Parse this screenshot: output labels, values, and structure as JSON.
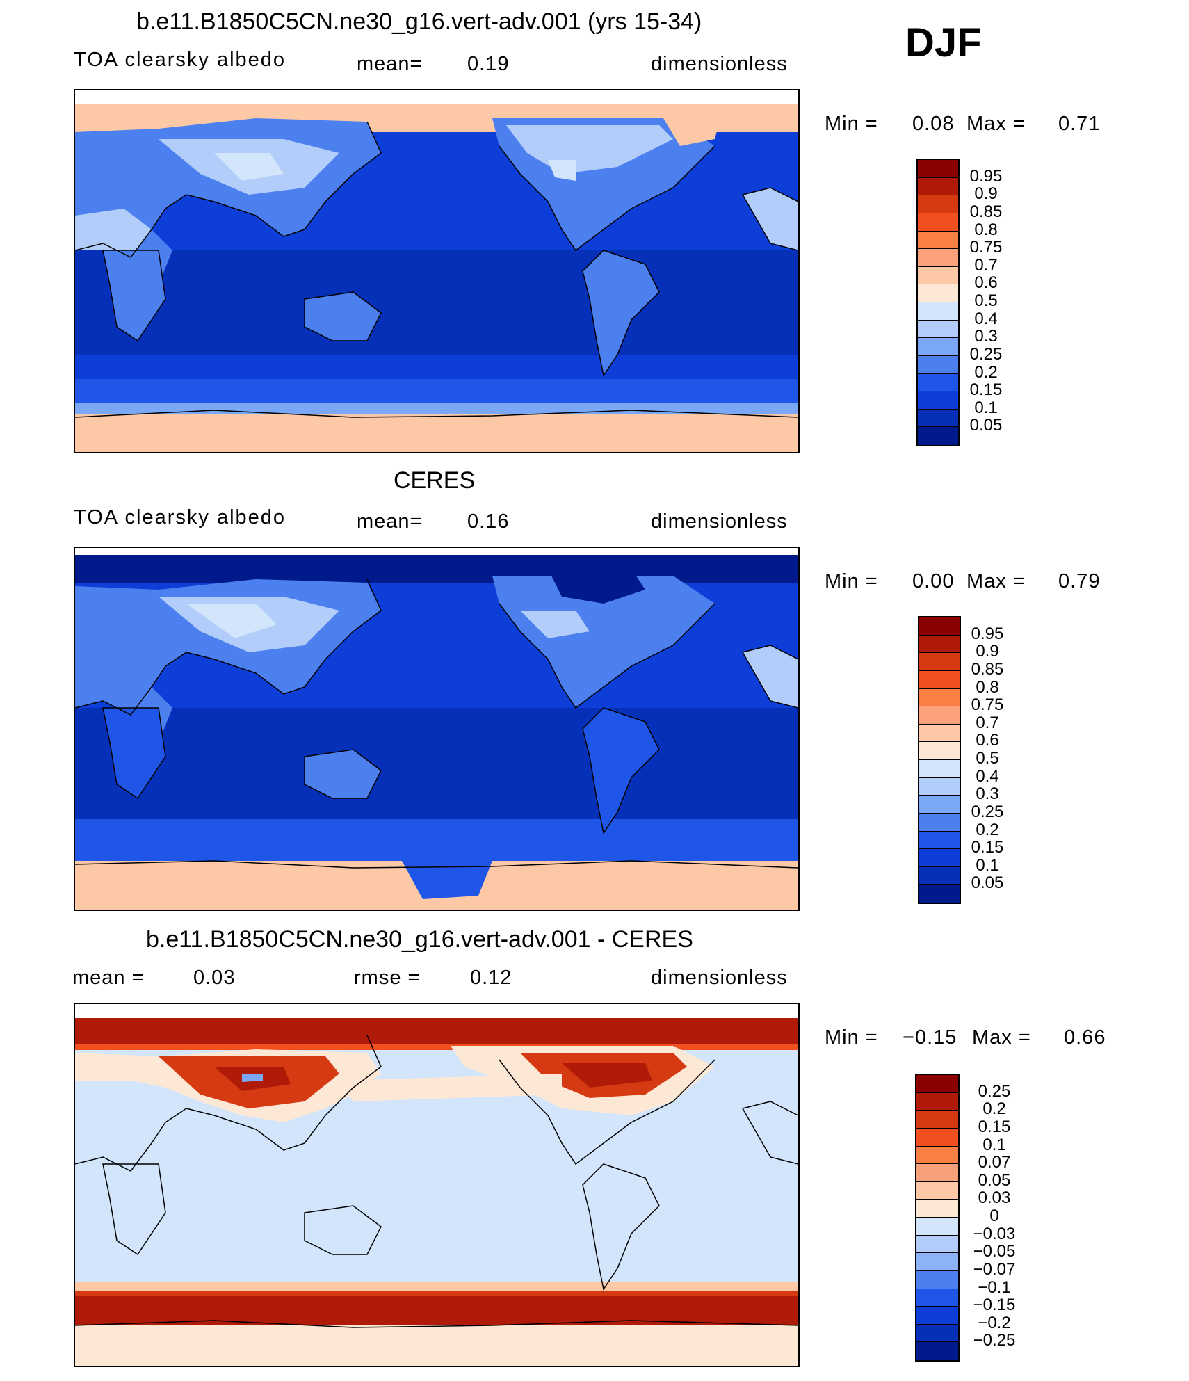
{
  "season": "DJF",
  "panels": [
    {
      "title": "b.e11.B1850C5CN.ne30_g16.vert-adv.001 (yrs 15-34)",
      "left_label": "TOA clearsky albedo",
      "center_label": "mean=",
      "center_value": "0.19",
      "right_label": "dimensionless",
      "min_label": "Min =",
      "min_value": "0.08",
      "max_label": "Max =",
      "max_value": "0.71",
      "colorbar": {
        "levels": [
          "0.95",
          "0.9",
          "0.85",
          "0.8",
          "0.75",
          "0.7",
          "0.6",
          "0.5",
          "0.4",
          "0.3",
          "0.25",
          "0.2",
          "0.15",
          "0.1",
          "0.05"
        ],
        "colors": [
          "#8b0000",
          "#b01a08",
          "#d63a12",
          "#f0501e",
          "#fa7f45",
          "#fca27a",
          "#fcc8a6",
          "#fde8d6",
          "#d2e5fb",
          "#b2cdfa",
          "#7aa8f6",
          "#4d80ef",
          "#1f56e8",
          "#0d3ed8",
          "#0730b8",
          "#001a8c"
        ]
      }
    },
    {
      "title": "CERES",
      "left_label": "TOA clearsky albedo",
      "center_label": "mean=",
      "center_value": "0.16",
      "right_label": "dimensionless",
      "min_label": "Min =",
      "min_value": "0.00",
      "max_label": "Max =",
      "max_value": "0.79",
      "colorbar": {
        "levels": [
          "0.95",
          "0.9",
          "0.85",
          "0.8",
          "0.75",
          "0.7",
          "0.6",
          "0.5",
          "0.4",
          "0.3",
          "0.25",
          "0.2",
          "0.15",
          "0.1",
          "0.05"
        ],
        "colors": [
          "#8b0000",
          "#b01a08",
          "#d63a12",
          "#f0501e",
          "#fa7f45",
          "#fca27a",
          "#fcc8a6",
          "#fde8d6",
          "#d2e5fb",
          "#b2cdfa",
          "#7aa8f6",
          "#4d80ef",
          "#1f56e8",
          "#0d3ed8",
          "#0730b8",
          "#001a8c"
        ]
      }
    },
    {
      "title": "b.e11.B1850C5CN.ne30_g16.vert-adv.001 - CERES",
      "left_label": "mean =",
      "left_value": "0.03",
      "center_label": "rmse =",
      "center_value": "0.12",
      "right_label": "dimensionless",
      "min_label": "Min =",
      "min_value": "−0.15",
      "max_label": "Max =",
      "max_value": "0.66",
      "colorbar": {
        "levels": [
          "0.25",
          "0.2",
          "0.15",
          "0.1",
          "0.07",
          "0.05",
          "0.03",
          "0",
          "−0.03",
          "−0.05",
          "−0.07",
          "−0.1",
          "−0.15",
          "−0.2",
          "−0.25"
        ],
        "colors": [
          "#8b0000",
          "#b01a08",
          "#d63a12",
          "#f0501e",
          "#fa7f45",
          "#f7a07c",
          "#fcc8a6",
          "#fde8d6",
          "#d2e5fb",
          "#b2cdfa",
          "#8cb2f8",
          "#4d80ef",
          "#1f56e8",
          "#0d3ed8",
          "#0730b8",
          "#001a8c"
        ]
      }
    }
  ],
  "colors": {
    "ocean_model": "#0d3ed8",
    "ocean_model_tropics": "#0730b8",
    "land_model": "#4d80ef",
    "snow_model": "#fcc8a6",
    "diff_ocean": "#d2e5fb",
    "diff_high": "#b01a08"
  }
}
